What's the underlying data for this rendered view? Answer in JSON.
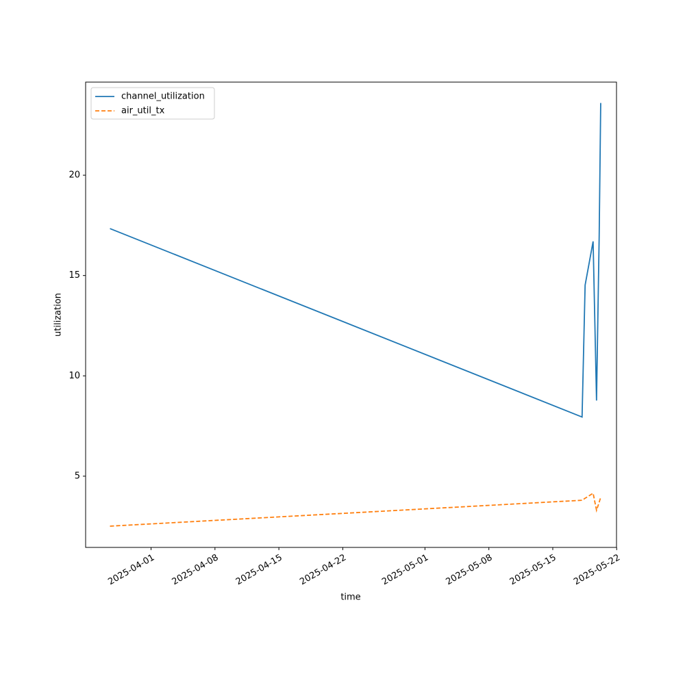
{
  "chart_data": {
    "type": "line",
    "xlabel": "time",
    "ylabel": "utilization",
    "x": [
      "2025-03-27T12:00",
      "2025-05-18T05:00",
      "2025-05-18T13:00",
      "2025-05-19T10:00",
      "2025-05-19T19:00",
      "2025-05-20T02:00",
      "2025-05-20T06:00"
    ],
    "series": [
      {
        "name": "channel_utilization",
        "color": "#1f77b4",
        "dash": "solid",
        "values": [
          17.34,
          7.95,
          14.52,
          16.7,
          8.77,
          17.0,
          23.6
        ]
      },
      {
        "name": "air_util_tx",
        "color": "#ff7f0e",
        "dash": "dashed",
        "values": [
          2.51,
          3.8,
          3.9,
          4.15,
          3.3,
          3.7,
          3.95
        ]
      }
    ],
    "xlim": [
      "2025-03-24T20:00",
      "2025-05-21T23:30"
    ],
    "xticks": [
      "2025-04-01",
      "2025-04-08",
      "2025-04-15",
      "2025-04-22",
      "2025-05-01",
      "2025-05-08",
      "2025-05-15",
      "2025-05-22"
    ],
    "ylim": [
      1.45,
      24.64
    ],
    "yticks": [
      5,
      10,
      15,
      20
    ],
    "legend": "upper left"
  }
}
